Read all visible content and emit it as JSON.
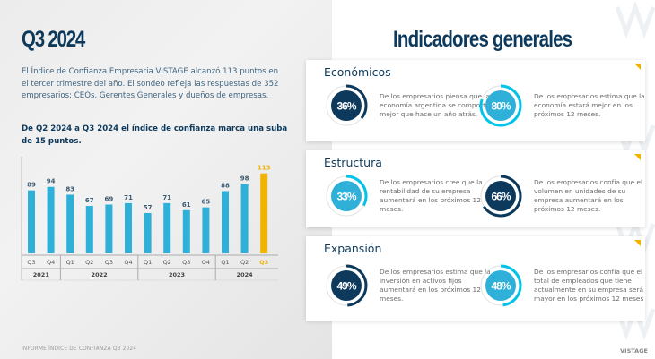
{
  "left": {
    "title": "Q3 2024",
    "intro": "El Índice de Confianza Empresaria VISTAGE alcanzó 113 puntos en el tercer trimestre del año. El sondeo refleja las respuestas de 352 empresarios: CEOs, Gerentes Generales y dueños de empresas.",
    "highlight": "De Q2 2024 a Q3 2024 el índice de confianza marca una suba de 15 puntos.",
    "footer": "INFORME ÍNDICE DE CONFIANZA Q3 2024"
  },
  "chart_data": {
    "type": "bar",
    "categories": [
      "Q3",
      "Q4",
      "Q1",
      "Q2",
      "Q3",
      "Q4",
      "Q1",
      "Q2",
      "Q3",
      "Q4",
      "Q1",
      "Q2",
      "Q3"
    ],
    "years": [
      {
        "label": "2021",
        "count": 2
      },
      {
        "label": "2022",
        "count": 4
      },
      {
        "label": "2023",
        "count": 4
      },
      {
        "label": "2024",
        "count": 3
      }
    ],
    "values": [
      89,
      94,
      83,
      67,
      69,
      71,
      57,
      71,
      61,
      65,
      88,
      98,
      113
    ],
    "highlight_index": 12,
    "colors": {
      "bar": "#2eb0d9",
      "highlight": "#f0b400",
      "label": "#3a5a72"
    }
  },
  "right": {
    "title": "Indicadores generales",
    "brand": "VISTAGE",
    "sections": [
      {
        "title": "Económicos",
        "items": [
          {
            "value": "36%",
            "pct": 36,
            "style": "dark",
            "text": "De los empresarios piensa que la economía argentina se comportó mejor que hace un año atrás."
          },
          {
            "value": "80%",
            "pct": 80,
            "style": "light",
            "text": "De los empresarios estima que la economía estará mejor en los próximos 12 meses."
          }
        ]
      },
      {
        "title": "Estructura",
        "items": [
          {
            "value": "33%",
            "pct": 33,
            "style": "light",
            "text": "De los empresarios cree que la rentabilidad de su empresa aumentará en los próximos 12 meses."
          },
          {
            "value": "66%",
            "pct": 66,
            "style": "dark",
            "text": "De los empresarios confía que el volumen en unidades de su empresa aumentará en los próximos 12 meses."
          }
        ]
      },
      {
        "title": "Expansión",
        "items": [
          {
            "value": "49%",
            "pct": 49,
            "style": "dark",
            "text": "De los empresarios estima que la inversión en activos fijos aumentará en los próximos 12 meses."
          },
          {
            "value": "48%",
            "pct": 48,
            "style": "light",
            "text": "De los empresarios confía que el total de empleados que tiene actualmente en su empresa será mayor en los próximos 12 meses"
          }
        ]
      }
    ]
  },
  "colors": {
    "navy": "#0d3a5c",
    "cyan": "#00c3ea",
    "lightblue": "#2eb0d9",
    "accent": "#f0b400"
  }
}
